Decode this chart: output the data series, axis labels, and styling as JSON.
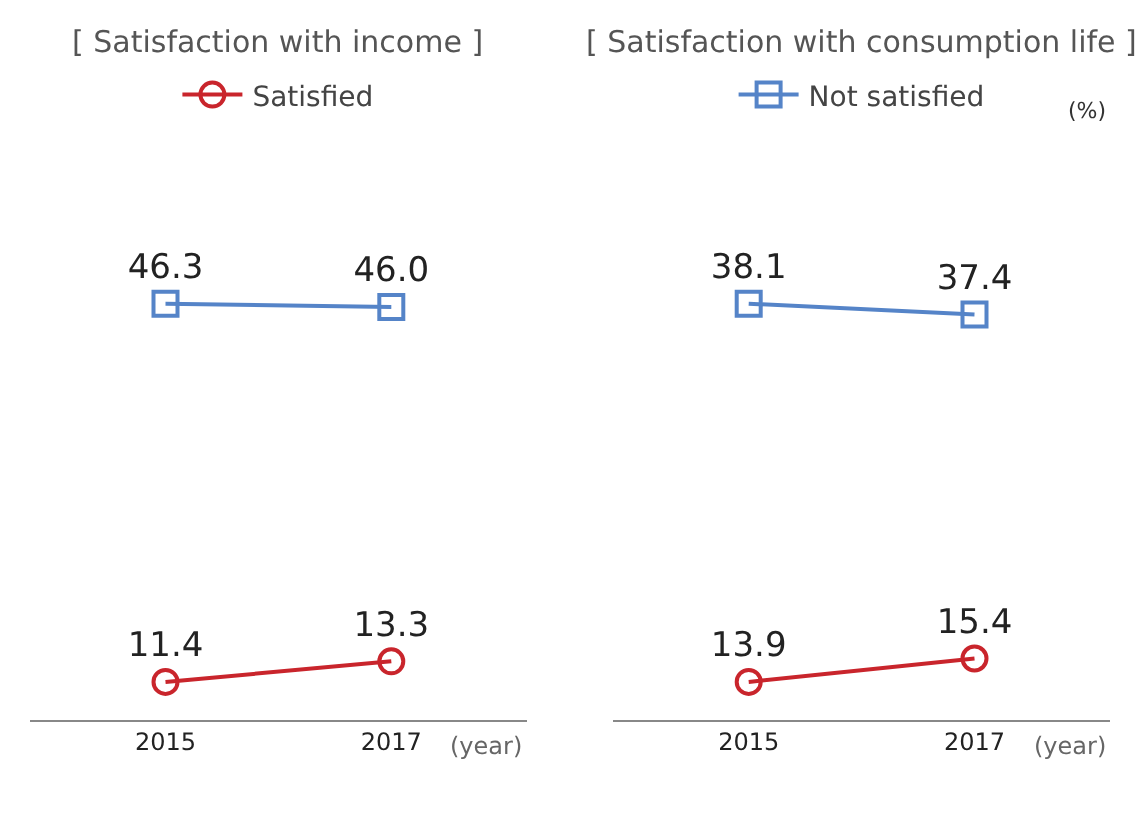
{
  "chart_data": [
    {
      "type": "line",
      "title": "[ Satisfaction with income ]",
      "xlabel": "(year)",
      "categories": [
        "2015",
        "2017"
      ],
      "tick_labels": "x",
      "legend": "top",
      "series": [
        {
          "name": "Satisfied",
          "color": "#c9252c",
          "marker": "circle",
          "values": [
            11.4,
            13.3
          ],
          "value_labels": [
            "11.4",
            "13.3"
          ]
        },
        {
          "color": "#5584c8",
          "marker": "square",
          "values": [
            46.3,
            46.0
          ],
          "value_labels": [
            "46.3",
            "46.0"
          ]
        }
      ]
    },
    {
      "type": "line",
      "title": "[ Satisfaction with consumption life ]",
      "xlabel": "(year)",
      "ylabel": "(%)",
      "categories": [
        "2015",
        "2017"
      ],
      "tick_labels": "x",
      "legend": "top",
      "series": [
        {
          "color": "#c9252c",
          "marker": "circle",
          "values": [
            13.9,
            15.4
          ],
          "value_labels": [
            "13.9",
            "15.4"
          ]
        },
        {
          "name": "Not satisfied",
          "color": "#5584c8",
          "marker": "square",
          "values": [
            38.1,
            37.4
          ],
          "value_labels": [
            "38.1",
            "37.4"
          ]
        }
      ]
    }
  ]
}
